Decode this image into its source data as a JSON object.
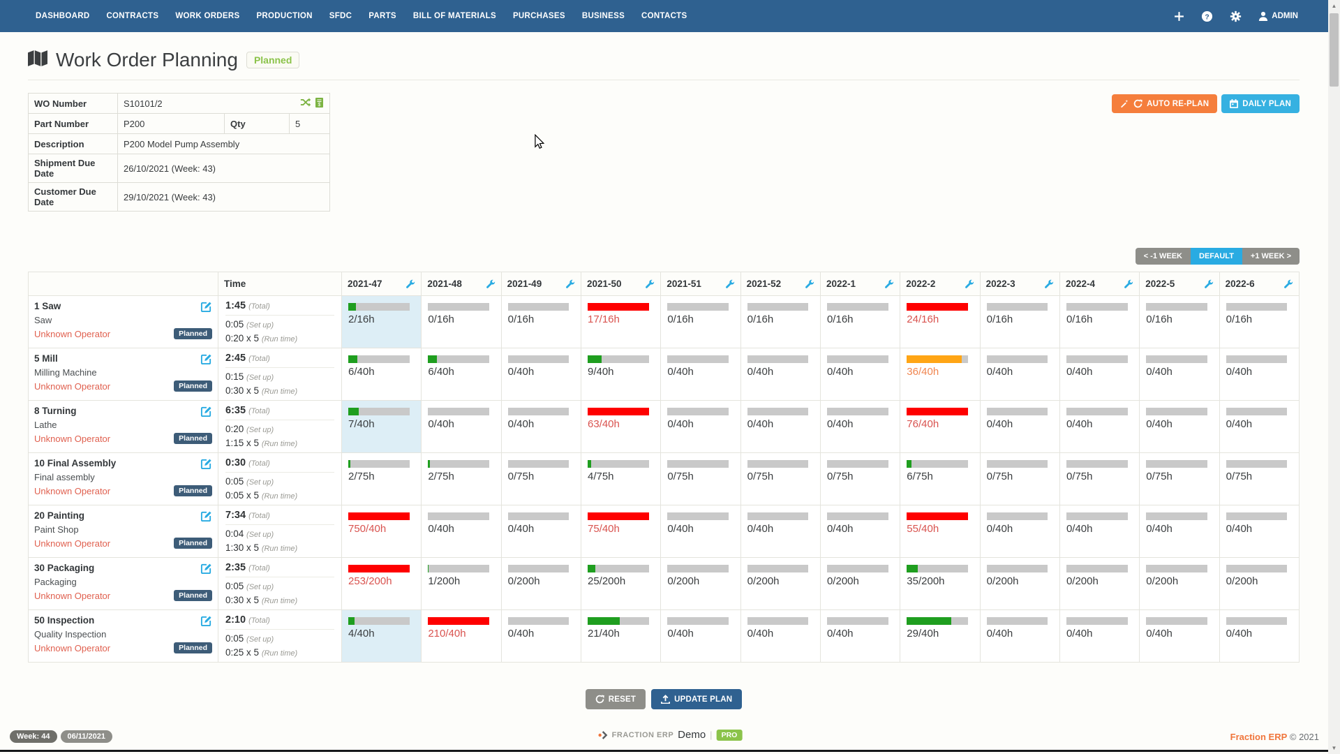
{
  "nav": {
    "items": [
      "DASHBOARD",
      "CONTRACTS",
      "WORK ORDERS",
      "PRODUCTION",
      "SFDC",
      "PARTS",
      "BILL OF MATERIALS",
      "PURCHASES",
      "BUSINESS",
      "CONTACTS"
    ],
    "admin_label": "ADMIN",
    "icons": [
      "plus-icon",
      "help-icon",
      "gear-icon",
      "user-icon"
    ]
  },
  "header": {
    "title": "Work Order Planning",
    "status_badge": "Planned",
    "icon": "map-icon"
  },
  "wo_info": {
    "wo_number_label": "WO Number",
    "wo_number": "S10101/2",
    "part_number_label": "Part Number",
    "part_number": "P200",
    "qty_label": "Qty",
    "qty": "5",
    "description_label": "Description",
    "description": "P200 Model Pump Assembly",
    "shipment_label": "Shipment Due Date",
    "shipment": "26/10/2021 (Week: 43)",
    "customer_label": "Customer Due Date",
    "customer": "29/10/2021 (Week: 43)",
    "icons": [
      "shuffle-icon",
      "invoice-icon"
    ]
  },
  "actions": {
    "auto_replan": "AUTO RE-PLAN",
    "daily_plan": "DAILY PLAN",
    "prev_week": "< -1 WEEK",
    "default_view": "DEFAULT",
    "next_week": "+1 WEEK >",
    "reset": "RESET",
    "update_plan": "UPDATE PLAN"
  },
  "planning": {
    "time_header": "Time",
    "weeks": [
      "2021-47",
      "2021-48",
      "2021-49",
      "2021-50",
      "2021-51",
      "2021-52",
      "2022-1",
      "2022-2",
      "2022-3",
      "2022-4",
      "2022-5",
      "2022-6"
    ],
    "labels": {
      "total": "(Total)",
      "setup": "(Set up)",
      "runtime": "(Run time)"
    },
    "status_badge": "Planned",
    "rows": [
      {
        "op": "1 Saw",
        "machine": "Saw",
        "operator": "Unknown Operator",
        "total": "1:45",
        "setup": "0:05",
        "runtime": "0:20 x 5",
        "cells": [
          {
            "text": "2/16h",
            "fill": 12.5,
            "bar": "green",
            "hl": true
          },
          {
            "text": "0/16h",
            "fill": 0,
            "bar": "none"
          },
          {
            "text": "0/16h",
            "fill": 0,
            "bar": "none"
          },
          {
            "text": "17/16h",
            "fill": 100,
            "bar": "red",
            "tc": "red"
          },
          {
            "text": "0/16h",
            "fill": 0,
            "bar": "none"
          },
          {
            "text": "0/16h",
            "fill": 0,
            "bar": "none"
          },
          {
            "text": "0/16h",
            "fill": 0,
            "bar": "none"
          },
          {
            "text": "24/16h",
            "fill": 100,
            "bar": "red",
            "tc": "red"
          },
          {
            "text": "0/16h",
            "fill": 0,
            "bar": "none"
          },
          {
            "text": "0/16h",
            "fill": 0,
            "bar": "none"
          },
          {
            "text": "0/16h",
            "fill": 0,
            "bar": "none"
          },
          {
            "text": "0/16h",
            "fill": 0,
            "bar": "none"
          }
        ]
      },
      {
        "op": "5 Mill",
        "machine": "Milling Machine",
        "operator": "Unknown Operator",
        "total": "2:45",
        "setup": "0:15",
        "runtime": "0:30 x 5",
        "cells": [
          {
            "text": "6/40h",
            "fill": 15,
            "bar": "green"
          },
          {
            "text": "6/40h",
            "fill": 15,
            "bar": "green"
          },
          {
            "text": "0/40h",
            "fill": 0,
            "bar": "none"
          },
          {
            "text": "9/40h",
            "fill": 22.5,
            "bar": "green"
          },
          {
            "text": "0/40h",
            "fill": 0,
            "bar": "none"
          },
          {
            "text": "0/40h",
            "fill": 0,
            "bar": "none"
          },
          {
            "text": "0/40h",
            "fill": 0,
            "bar": "none"
          },
          {
            "text": "36/40h",
            "fill": 90,
            "bar": "orange",
            "tc": "orange"
          },
          {
            "text": "0/40h",
            "fill": 0,
            "bar": "none"
          },
          {
            "text": "0/40h",
            "fill": 0,
            "bar": "none"
          },
          {
            "text": "0/40h",
            "fill": 0,
            "bar": "none"
          },
          {
            "text": "0/40h",
            "fill": 0,
            "bar": "none"
          }
        ]
      },
      {
        "op": "8 Turning",
        "machine": "Lathe",
        "operator": "Unknown Operator",
        "total": "6:35",
        "setup": "0:20",
        "runtime": "1:15 x 5",
        "cells": [
          {
            "text": "7/40h",
            "fill": 17.5,
            "bar": "green",
            "hl": true
          },
          {
            "text": "0/40h",
            "fill": 0,
            "bar": "none"
          },
          {
            "text": "0/40h",
            "fill": 0,
            "bar": "none"
          },
          {
            "text": "63/40h",
            "fill": 100,
            "bar": "red",
            "tc": "red"
          },
          {
            "text": "0/40h",
            "fill": 0,
            "bar": "none"
          },
          {
            "text": "0/40h",
            "fill": 0,
            "bar": "none"
          },
          {
            "text": "0/40h",
            "fill": 0,
            "bar": "none"
          },
          {
            "text": "76/40h",
            "fill": 100,
            "bar": "red",
            "tc": "red"
          },
          {
            "text": "0/40h",
            "fill": 0,
            "bar": "none"
          },
          {
            "text": "0/40h",
            "fill": 0,
            "bar": "none"
          },
          {
            "text": "0/40h",
            "fill": 0,
            "bar": "none"
          },
          {
            "text": "0/40h",
            "fill": 0,
            "bar": "none"
          }
        ]
      },
      {
        "op": "10 Final Assembly",
        "machine": "Final assembly",
        "operator": "Unknown Operator",
        "total": "0:30",
        "setup": "0:05",
        "runtime": "0:05 x 5",
        "cells": [
          {
            "text": "2/75h",
            "fill": 3,
            "bar": "green"
          },
          {
            "text": "2/75h",
            "fill": 3,
            "bar": "green"
          },
          {
            "text": "0/75h",
            "fill": 0,
            "bar": "none"
          },
          {
            "text": "4/75h",
            "fill": 5.5,
            "bar": "green"
          },
          {
            "text": "0/75h",
            "fill": 0,
            "bar": "none"
          },
          {
            "text": "0/75h",
            "fill": 0,
            "bar": "none"
          },
          {
            "text": "0/75h",
            "fill": 0,
            "bar": "none"
          },
          {
            "text": "6/75h",
            "fill": 8,
            "bar": "green"
          },
          {
            "text": "0/75h",
            "fill": 0,
            "bar": "none"
          },
          {
            "text": "0/75h",
            "fill": 0,
            "bar": "none"
          },
          {
            "text": "0/75h",
            "fill": 0,
            "bar": "none"
          },
          {
            "text": "0/75h",
            "fill": 0,
            "bar": "none"
          }
        ]
      },
      {
        "op": "20 Painting",
        "machine": "Paint Shop",
        "operator": "Unknown Operator",
        "total": "7:34",
        "setup": "0:04",
        "runtime": "1:30 x 5",
        "cells": [
          {
            "text": "750/40h",
            "fill": 100,
            "bar": "red",
            "tc": "red"
          },
          {
            "text": "0/40h",
            "fill": 0,
            "bar": "none"
          },
          {
            "text": "0/40h",
            "fill": 0,
            "bar": "none"
          },
          {
            "text": "75/40h",
            "fill": 100,
            "bar": "red",
            "tc": "red"
          },
          {
            "text": "0/40h",
            "fill": 0,
            "bar": "none"
          },
          {
            "text": "0/40h",
            "fill": 0,
            "bar": "none"
          },
          {
            "text": "0/40h",
            "fill": 0,
            "bar": "none"
          },
          {
            "text": "55/40h",
            "fill": 100,
            "bar": "red",
            "tc": "red"
          },
          {
            "text": "0/40h",
            "fill": 0,
            "bar": "none"
          },
          {
            "text": "0/40h",
            "fill": 0,
            "bar": "none"
          },
          {
            "text": "0/40h",
            "fill": 0,
            "bar": "none"
          },
          {
            "text": "0/40h",
            "fill": 0,
            "bar": "none"
          }
        ]
      },
      {
        "op": "30 Packaging",
        "machine": "Packaging",
        "operator": "Unknown Operator",
        "total": "2:35",
        "setup": "0:05",
        "runtime": "0:30 x 5",
        "cells": [
          {
            "text": "253/200h",
            "fill": 100,
            "bar": "red",
            "tc": "red"
          },
          {
            "text": "1/200h",
            "fill": 1,
            "bar": "green"
          },
          {
            "text": "0/200h",
            "fill": 0,
            "bar": "none"
          },
          {
            "text": "25/200h",
            "fill": 12.5,
            "bar": "green"
          },
          {
            "text": "0/200h",
            "fill": 0,
            "bar": "none"
          },
          {
            "text": "0/200h",
            "fill": 0,
            "bar": "none"
          },
          {
            "text": "0/200h",
            "fill": 0,
            "bar": "none"
          },
          {
            "text": "35/200h",
            "fill": 17.5,
            "bar": "green"
          },
          {
            "text": "0/200h",
            "fill": 0,
            "bar": "none"
          },
          {
            "text": "0/200h",
            "fill": 0,
            "bar": "none"
          },
          {
            "text": "0/200h",
            "fill": 0,
            "bar": "none"
          },
          {
            "text": "0/200h",
            "fill": 0,
            "bar": "none"
          }
        ]
      },
      {
        "op": "50 Inspection",
        "machine": "Quality Inspection",
        "operator": "Unknown Operator",
        "total": "2:10",
        "setup": "0:05",
        "runtime": "0:25 x 5",
        "cells": [
          {
            "text": "4/40h",
            "fill": 10,
            "bar": "green",
            "hl": true
          },
          {
            "text": "210/40h",
            "fill": 100,
            "bar": "red",
            "tc": "red"
          },
          {
            "text": "0/40h",
            "fill": 0,
            "bar": "none"
          },
          {
            "text": "21/40h",
            "fill": 52.5,
            "bar": "green"
          },
          {
            "text": "0/40h",
            "fill": 0,
            "bar": "none"
          },
          {
            "text": "0/40h",
            "fill": 0,
            "bar": "none"
          },
          {
            "text": "0/40h",
            "fill": 0,
            "bar": "none"
          },
          {
            "text": "29/40h",
            "fill": 72.5,
            "bar": "green"
          },
          {
            "text": "0/40h",
            "fill": 0,
            "bar": "none"
          },
          {
            "text": "0/40h",
            "fill": 0,
            "bar": "none"
          },
          {
            "text": "0/40h",
            "fill": 0,
            "bar": "none"
          },
          {
            "text": "0/40h",
            "fill": 0,
            "bar": "none"
          }
        ]
      }
    ]
  },
  "footer": {
    "week_pill": "Week: 44",
    "date_pill": "06/11/2021",
    "brand": "FRACTION ERP",
    "brand_mode": "Demo",
    "pro_badge": "PRO",
    "copyright_brand": "Fraction ERP",
    "copyright": "© 2021"
  },
  "colors": {
    "nav_blue": "#2f6190",
    "accent_blue": "#29abe2",
    "button_orange": "#f57e3c",
    "button_lightblue": "#36b1e1",
    "button_gray": "#8e8e89",
    "green": "#8bc34a",
    "bar_green": "#1f9e1f",
    "bar_red": "#fe0000",
    "bar_orange": "#ffa515",
    "bar_track": "#c9c9c9",
    "operator_red": "#e0604f",
    "badge_navy": "#3d5c78",
    "cell_highlight": "#ddeef6",
    "overload_text": "#d9534f",
    "warn_text": "#f0854f"
  }
}
